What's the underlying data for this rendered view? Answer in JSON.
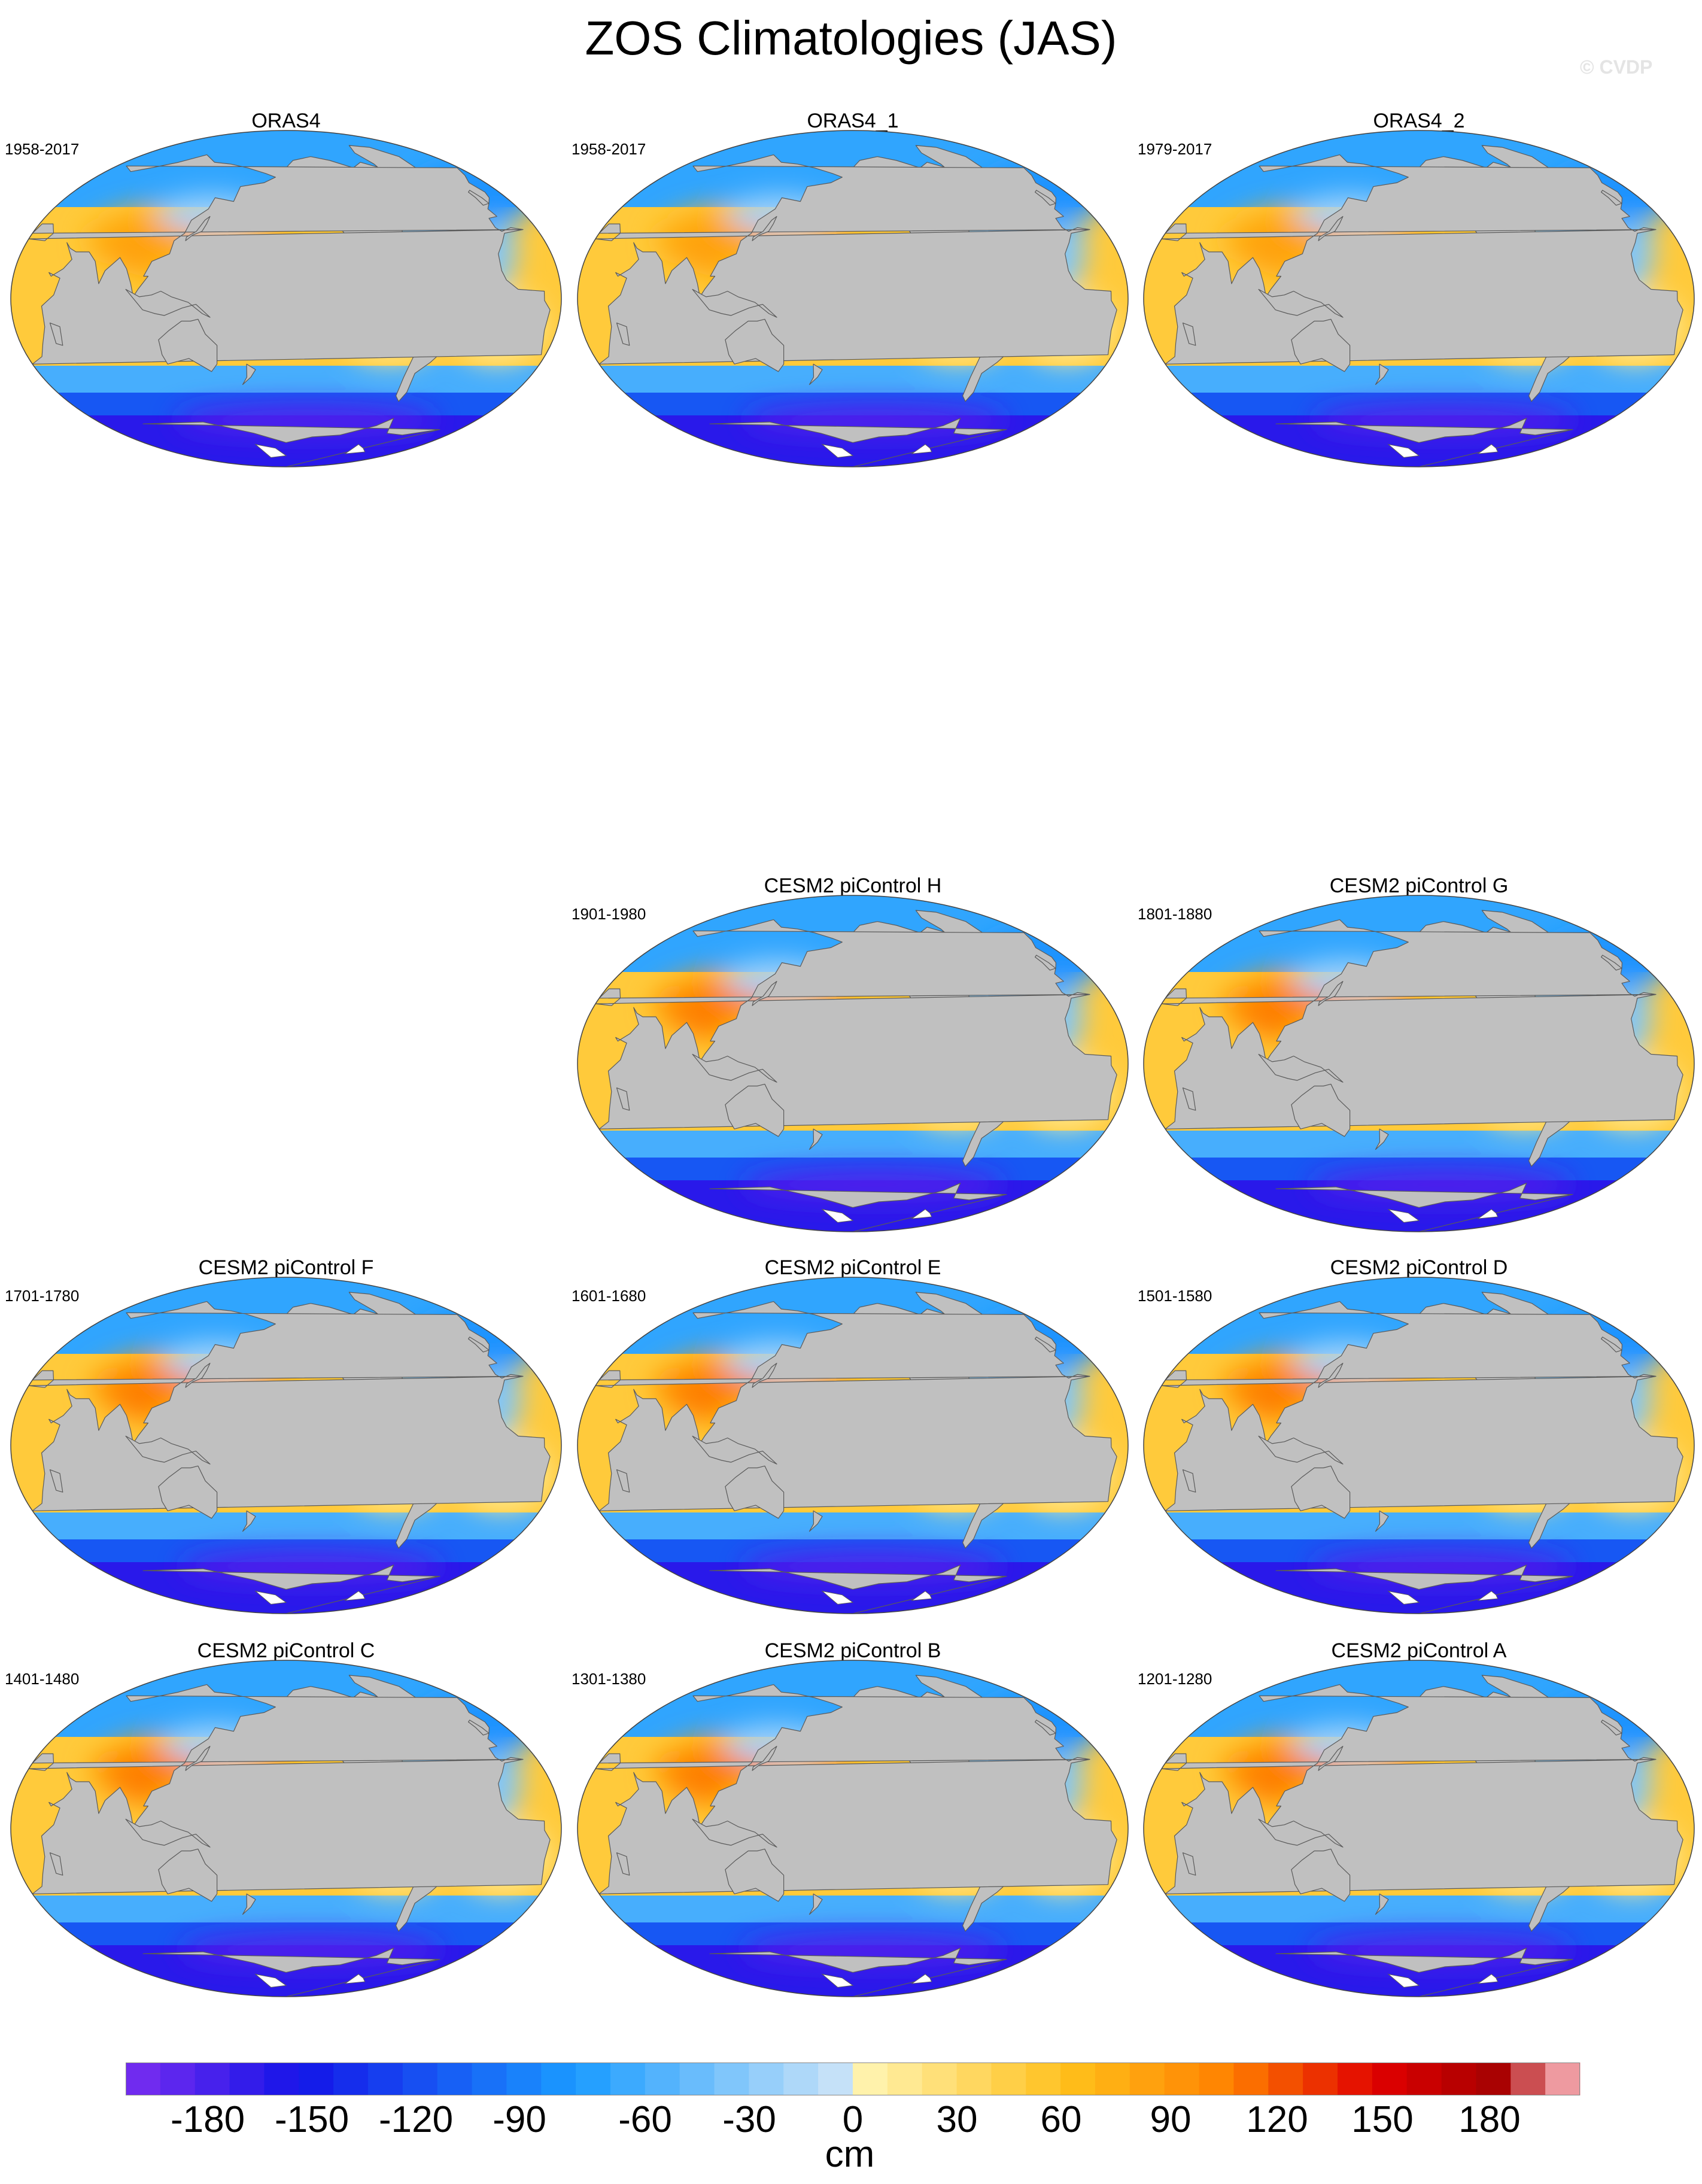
{
  "title": "ZOS Climatologies (JAS)",
  "watermark": "© CVDP",
  "panels": [
    {
      "title": "ORAS4",
      "period": "1958-2017"
    },
    {
      "title": "ORAS4_1",
      "period": "1958-2017"
    },
    {
      "title": "ORAS4_2",
      "period": "1979-2017"
    },
    {
      "title": "CESM2 piControl H",
      "period": "1901-1980"
    },
    {
      "title": "CESM2 piControl G",
      "period": "1801-1880"
    },
    {
      "title": "CESM2 piControl F",
      "period": "1701-1780"
    },
    {
      "title": "CESM2 piControl E",
      "period": "1601-1680"
    },
    {
      "title": "CESM2 piControl D",
      "period": "1501-1580"
    },
    {
      "title": "CESM2 piControl C",
      "period": "1401-1480"
    },
    {
      "title": "CESM2 piControl B",
      "period": "1301-1380"
    },
    {
      "title": "CESM2 piControl A",
      "period": "1201-1280"
    }
  ],
  "colorbar": {
    "units": "cm",
    "labels": [
      "-180",
      "-150",
      "-120",
      "-90",
      "-60",
      "-30",
      "0",
      "30",
      "60",
      "90",
      "120",
      "150",
      "180"
    ],
    "min": -210,
    "max": 210,
    "step": 10,
    "colors": {
      "neg_strong": "#7a2ef0",
      "neg_blue": "#1414e8",
      "neg_mid": "#1a9cff",
      "neg_light": "#d0e6f8",
      "pos_light": "#fff6b8",
      "pos_mid": "#ffbf1a",
      "pos_orange": "#ff8000",
      "pos_red": "#e00000",
      "pos_dark": "#a80000",
      "pos_pink": "#ffc0c8"
    }
  },
  "map_colors": {
    "land": "#c0c0c0",
    "ice": "#ffffff",
    "coast": "#5a5a5a"
  }
}
